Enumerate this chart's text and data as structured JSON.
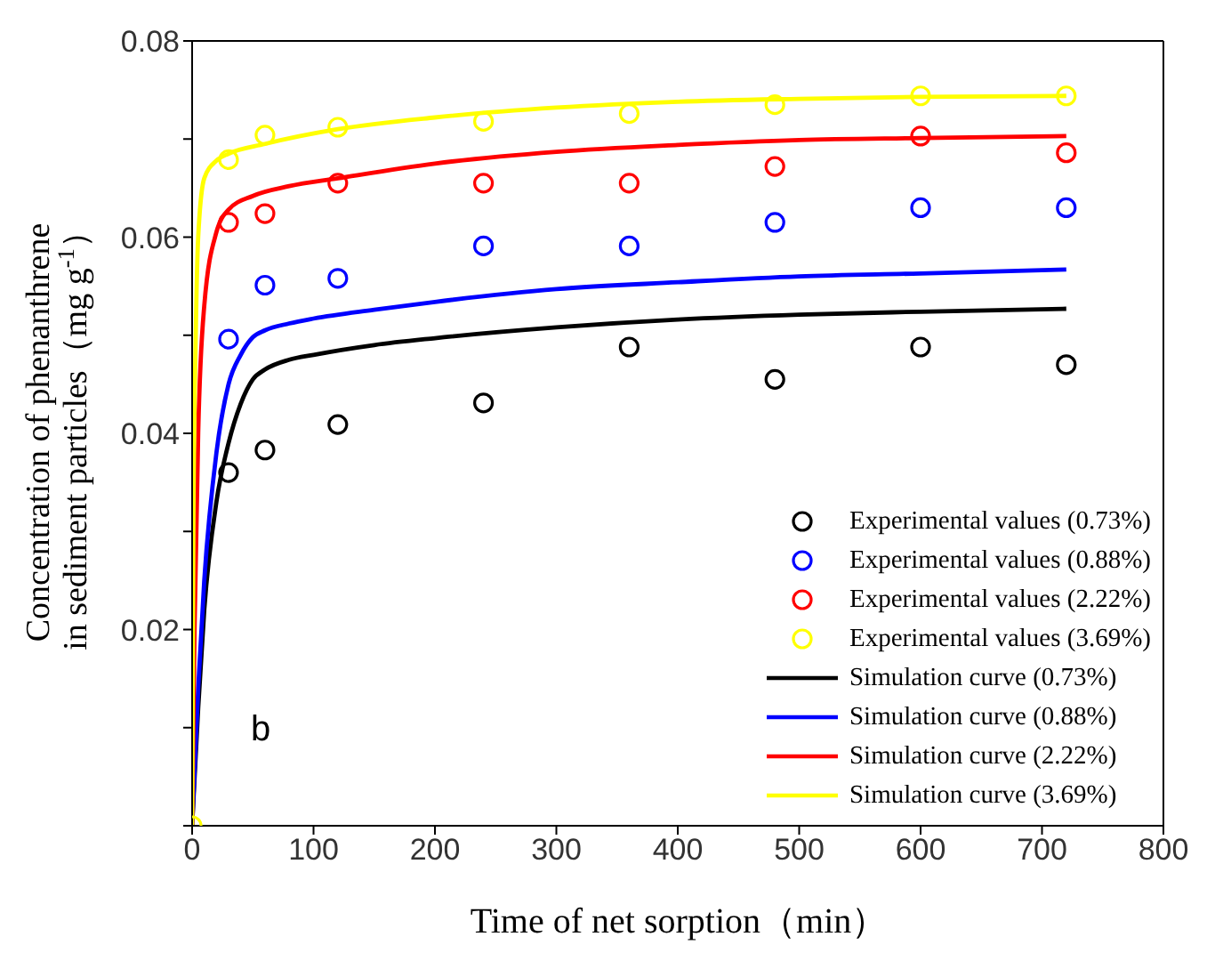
{
  "chart_data": {
    "type": "scatter",
    "xlabel": "Time of net sorption（min）",
    "ylabel": "Concentration of phenanthrene\nin sediment particles（mg g$^{-1}$）",
    "annotations": [
      "b"
    ],
    "xlim": [
      0,
      800
    ],
    "xticks": [
      0,
      100,
      200,
      300,
      400,
      500,
      600,
      700,
      800
    ],
    "ylim": [
      0,
      0.08
    ],
    "yticks": [
      {
        "value": 0,
        "label": null
      },
      {
        "value": 0.01,
        "label": null
      },
      0.02,
      {
        "value": 0.03,
        "label": null
      },
      0.04,
      {
        "value": 0.05,
        "label": null
      },
      0.06,
      {
        "value": 0.07,
        "label": null
      },
      0.08
    ],
    "legend": "bottom right",
    "x": [
      0,
      30,
      60,
      120,
      240,
      360,
      480,
      600,
      720
    ],
    "series": [
      {
        "name": "Experimental values (0.73%)",
        "marker": "circle",
        "color": "#000000",
        "values": [
          null,
          0.036,
          0.0383,
          0.0409,
          0.0431,
          0.0488,
          0.0455,
          0.0488,
          0.047
        ]
      },
      {
        "name": "Experimental values (0.88%)",
        "marker": "circle",
        "color": "#0000ff",
        "values": [
          null,
          0.0496,
          0.0551,
          0.0558,
          0.0591,
          0.0591,
          0.0615,
          0.063,
          0.063
        ]
      },
      {
        "name": "Experimental values (2.22%)",
        "marker": "circle",
        "color": "#ff0000",
        "values": [
          null,
          0.0615,
          0.0624,
          0.0655,
          0.0655,
          0.0655,
          0.0672,
          0.0703,
          0.0686
        ]
      },
      {
        "name": "Experimental values (3.69%)",
        "marker": "circle",
        "color": "#ffff00",
        "values": [
          0,
          0.0679,
          0.0704,
          0.0712,
          0.0718,
          0.0726,
          0.0735,
          0.0744,
          0.0744
        ]
      },
      {
        "name": "Simulation curve (0.73%)",
        "type": "line",
        "color": "#000000",
        "x": [
          0,
          5,
          10,
          20,
          30,
          40,
          50,
          60,
          80,
          100,
          150,
          200,
          300,
          400,
          500,
          600,
          720
        ],
        "values": [
          0,
          0.012,
          0.022,
          0.033,
          0.039,
          0.043,
          0.0455,
          0.0465,
          0.0475,
          0.048,
          0.049,
          0.0497,
          0.0508,
          0.0516,
          0.0521,
          0.0524,
          0.0527
        ]
      },
      {
        "name": "Simulation curve (0.88%)",
        "type": "line",
        "color": "#0000ff",
        "x": [
          0,
          5,
          10,
          20,
          30,
          40,
          50,
          60,
          80,
          100,
          150,
          200,
          300,
          400,
          500,
          600,
          720
        ],
        "values": [
          0,
          0.014,
          0.025,
          0.038,
          0.045,
          0.048,
          0.0498,
          0.0505,
          0.0512,
          0.0517,
          0.0526,
          0.0534,
          0.0547,
          0.0554,
          0.056,
          0.0563,
          0.0567
        ]
      },
      {
        "name": "Simulation curve (2.22%)",
        "type": "line",
        "color": "#ff0000",
        "x": [
          0,
          2,
          5,
          10,
          20,
          30,
          50,
          80,
          120,
          200,
          300,
          400,
          500,
          600,
          720
        ],
        "values": [
          0,
          0.02,
          0.04,
          0.053,
          0.0605,
          0.0628,
          0.0642,
          0.0652,
          0.066,
          0.0675,
          0.0687,
          0.0694,
          0.0699,
          0.0701,
          0.0703
        ]
      },
      {
        "name": "Simulation curve (3.69%)",
        "type": "line",
        "color": "#ffff00",
        "x": [
          0,
          1,
          3,
          5,
          10,
          20,
          30,
          60,
          120,
          200,
          300,
          400,
          500,
          600,
          720
        ],
        "values": [
          0,
          0.03,
          0.05,
          0.06,
          0.066,
          0.0678,
          0.0685,
          0.0695,
          0.071,
          0.0722,
          0.0732,
          0.0738,
          0.0741,
          0.0743,
          0.0744
        ]
      }
    ]
  }
}
